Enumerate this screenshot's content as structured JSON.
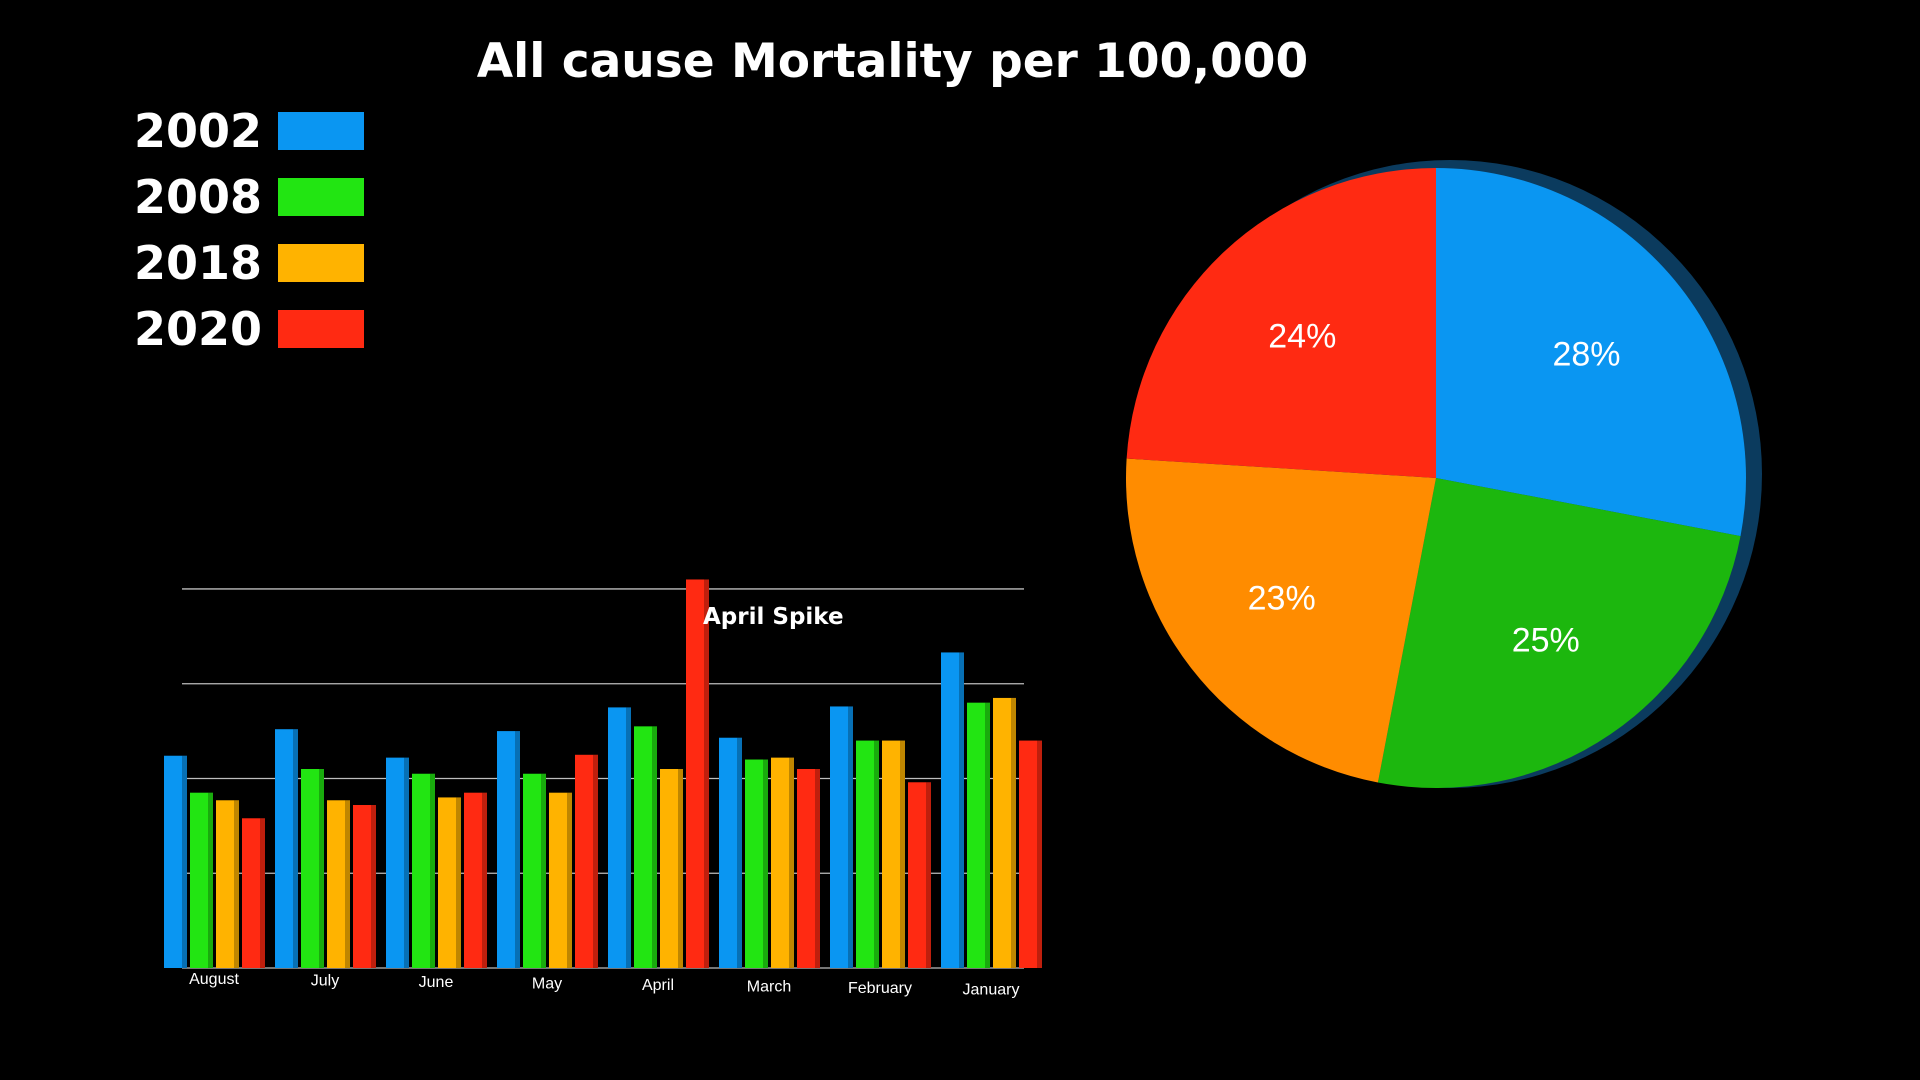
{
  "title": "All cause Mortality per 100,000",
  "legend": [
    {
      "label": "2002",
      "color": "#0a96f2"
    },
    {
      "label": "2008",
      "color": "#22e512"
    },
    {
      "label": "2018",
      "color": "#ffb300"
    },
    {
      "label": "2020",
      "color": "#ff2a12"
    }
  ],
  "chart_data": [
    {
      "type": "bar",
      "categories": [
        "August",
        "July",
        "June",
        "May",
        "April",
        "March",
        "February",
        "January"
      ],
      "series": [
        {
          "name": "2002",
          "color": "#0a96f2",
          "values": [
            224,
            252,
            222,
            250,
            275,
            243,
            276,
            333
          ]
        },
        {
          "name": "2008",
          "color": "#22e512",
          "values": [
            185,
            210,
            205,
            205,
            255,
            220,
            240,
            280
          ]
        },
        {
          "name": "2018",
          "color": "#ffb300",
          "values": [
            177,
            177,
            180,
            185,
            210,
            222,
            240,
            285
          ]
        },
        {
          "name": "2020",
          "color": "#ff2a12",
          "values": [
            158,
            172,
            185,
            225,
            410,
            210,
            196,
            240
          ]
        }
      ],
      "ylim": [
        0,
        420
      ],
      "grid": true,
      "annotation": "April Spike"
    },
    {
      "type": "pie",
      "slices": [
        {
          "name": "2002",
          "value": 28,
          "label": "28%",
          "color": "#0a96f2"
        },
        {
          "name": "2008",
          "value": 25,
          "label": "25%",
          "color": "#1cb70e"
        },
        {
          "name": "2018",
          "value": 23,
          "label": "23%",
          "color": "#ff8c00"
        },
        {
          "name": "2020",
          "value": 24,
          "label": "24%",
          "color": "#ff2a12"
        }
      ]
    }
  ]
}
